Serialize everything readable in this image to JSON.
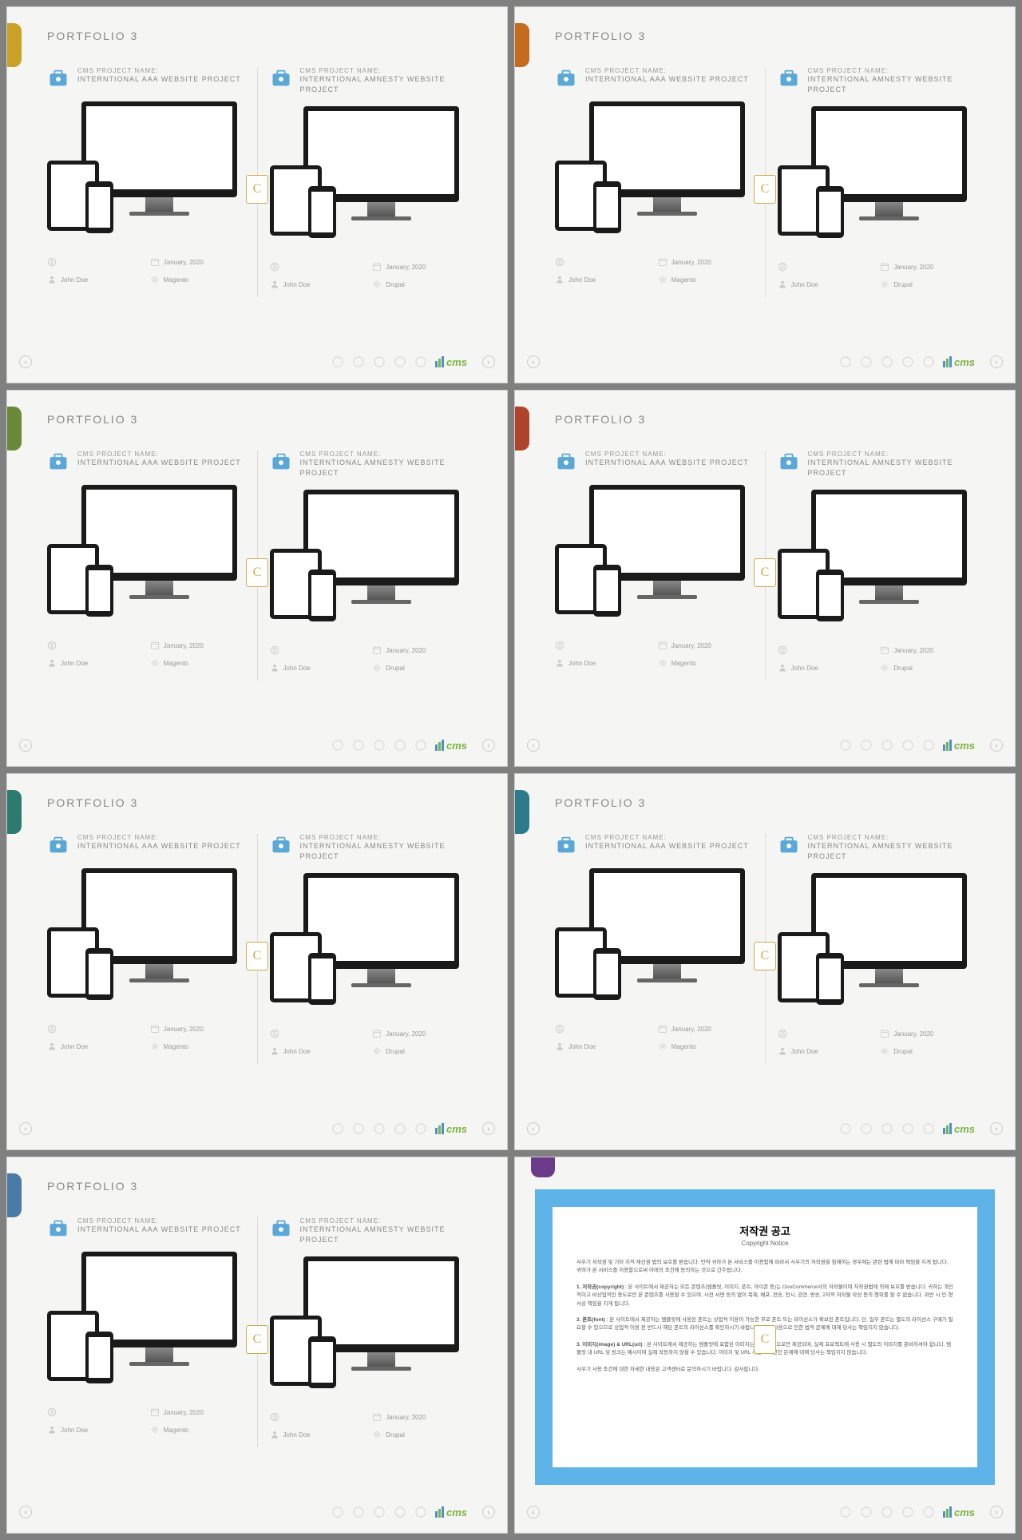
{
  "slide_title": "PORTFOLIO 3",
  "accent_colors": [
    "#c9a227",
    "#c46b1e",
    "#6a8a3a",
    "#b0442a",
    "#2d7a6f",
    "#2d7a8a",
    "#4a7aa8",
    "#6b3a8a"
  ],
  "project_label": "CMS PROJECT NAME:",
  "left_project": "INTERNTIONAL AAA WEBSITE PROJECT",
  "right_project": "INTERNTIONAL AMNESTY WEBSITE PROJECT",
  "icon_color_left": "#5ba8d8",
  "icon_color_right": "#5ba8d8",
  "date": "January, 2020",
  "person": "John Doe",
  "platform_left": "Magento",
  "platform_right": "Drupal",
  "url_placeholder": "",
  "cms_text": "cms",
  "cms_bar_colors": [
    "#4a90d9",
    "#7cb342",
    "#4a90d9"
  ],
  "badge_letter": "C",
  "nav_left": "‹",
  "nav_right": "›",
  "copyright": {
    "accent": "#6b3a8a",
    "frame": "#5eb3e8",
    "title": "저작권 공고",
    "subtitle": "Copyright Notice",
    "intro": "사우기 저작권 및 기타 지적 재산권 법의 보호를 받습니다. 만약 귀하가 본 서비스를 이용함에 따라서 사우기의 저작권을 침해하는 경우에는 관련 법에 따라 책임을 지게 됩니다. 귀하가 본 서비스를 이용함으로써 아래의 조건에 동의하는 것으로 간주됩니다.",
    "s1_head": "1. 저작권(copyright)",
    "s1_body": "본 사이트에서 제공하는 모든 콘텐츠(템플릿, 이미지, 폰트, 아이콘 등)는 OooCommerce사의 저작물이며 저작권법에 의해 보호를 받습니다. 귀하는 개인적이고 비상업적인 용도로만 본 콘텐츠를 사용할 수 있으며, 사전 서면 동의 없이 복제, 배포, 전송, 전시, 공연, 방송, 2차적 저작물 작성 등의 행위를 할 수 없습니다. 위반 시 민·형사상 책임을 지게 됩니다.",
    "s2_head": "2. 폰트(font)",
    "s2_body": "본 사이트에서 제공하는 템플릿에 사용된 폰트는 상업적 이용이 가능한 무료 폰트 또는 라이선스가 확보된 폰트입니다. 단, 일부 폰트는 별도의 라이선스 구매가 필요할 수 있으므로 상업적 이용 전 반드시 해당 폰트의 라이선스를 확인하시기 바랍니다. 폰트 사용으로 인한 법적 문제에 대해 당사는 책임지지 않습니다.",
    "s3_head": "3. 이미지(image) & URL(url)",
    "s3_body": "본 사이트에서 제공하는 템플릿에 포함된 이미지는 데모 목적으로만 제공되며, 실제 프로젝트에 사용 시 별도의 이미지를 준비하셔야 합니다. 템플릿 내 URL 및 링크는 예시이며 실제 작동하지 않을 수 있습니다. 이미지 및 URL 사용으로 인한 문제에 대해 당사는 책임지지 않습니다.",
    "outro": "사우기 사용 조건에 대한 자세한 내용은 고객센터로 문의하시기 바랍니다. 감사합니다."
  }
}
